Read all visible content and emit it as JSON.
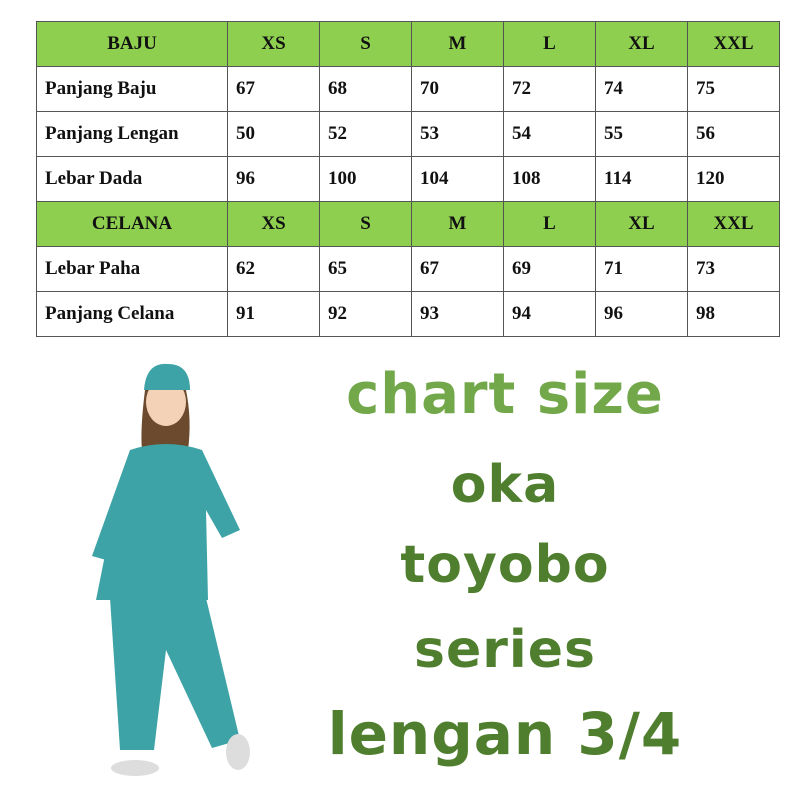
{
  "baju": {
    "header": [
      "BAJU",
      "XS",
      "S",
      "M",
      "L",
      "XL",
      "XXL"
    ],
    "rows": [
      {
        "label": "Panjang Baju",
        "values": [
          "67",
          "68",
          "70",
          "72",
          "74",
          "75"
        ]
      },
      {
        "label": "Panjang Lengan",
        "values": [
          "50",
          "52",
          "53",
          "54",
          "55",
          "56"
        ]
      },
      {
        "label": "Lebar Dada",
        "values": [
          "96",
          "100",
          "104",
          "108",
          "114",
          "120"
        ]
      }
    ]
  },
  "celana": {
    "header": [
      "CELANA",
      "XS",
      "S",
      "M",
      "L",
      "XL",
      "XXL"
    ],
    "rows": [
      {
        "label": "Lebar Paha",
        "values": [
          "62",
          "65",
          "67",
          "69",
          "71",
          "73"
        ]
      },
      {
        "label": "Panjang Celana",
        "values": [
          "91",
          "92",
          "93",
          "94",
          "96",
          "98"
        ]
      }
    ]
  },
  "title_lines": [
    "chart size",
    "oka",
    "toyobo",
    "series",
    "lengan 3/4"
  ],
  "colors": {
    "header_green": "#8fcf4f",
    "title_light": "#72a84a",
    "title_dark": "#4f7f2e",
    "scrubs_teal": "#3ea3a6"
  }
}
